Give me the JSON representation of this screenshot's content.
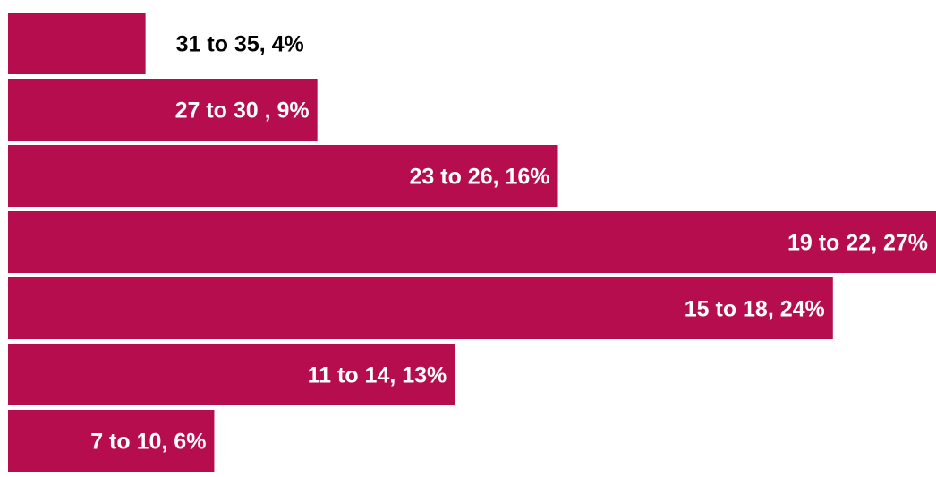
{
  "chart_data": {
    "type": "bar",
    "orientation": "horizontal",
    "bar_color": "#b50d4d",
    "label_color_inside": "#ffffff",
    "label_color_outside": "#000000",
    "grid": false,
    "legend": "none",
    "xlim": [
      0,
      27
    ],
    "bars": [
      {
        "label": "31 to 35, 4%",
        "value": 4
      },
      {
        "label": "27 to 30 , 9%",
        "value": 9
      },
      {
        "label": "23 to 26, 16%",
        "value": 16
      },
      {
        "label": "19 to 22, 27%",
        "value": 27
      },
      {
        "label": "15 to 18, 24%",
        "value": 24
      },
      {
        "label": "11 to 14, 13%",
        "value": 13
      },
      {
        "label": "7 to 10, 6%",
        "value": 6
      }
    ]
  }
}
